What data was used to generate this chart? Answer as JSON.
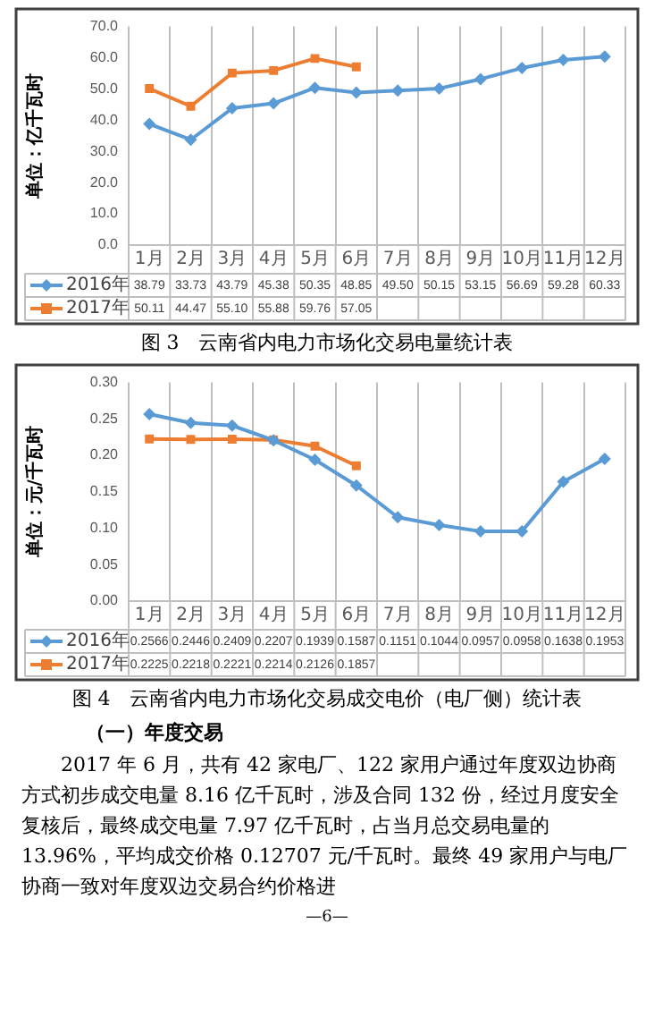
{
  "chart_data": [
    {
      "type": "line",
      "title": "图 3　云南省内电力市场化交易电量统计表",
      "ylabel": "单位：亿千瓦时",
      "categories": [
        "1月",
        "2月",
        "3月",
        "4月",
        "5月",
        "6月",
        "7月",
        "8月",
        "9月",
        "10月",
        "11月",
        "12月"
      ],
      "series": [
        {
          "name": "2016年",
          "color": "#5b9bd5",
          "marker": "diamond",
          "values": [
            38.79,
            33.73,
            43.79,
            45.38,
            50.35,
            48.85,
            49.5,
            50.15,
            53.15,
            56.69,
            59.28,
            60.33
          ],
          "value_labels": [
            "38.79",
            "33.73",
            "43.79",
            "45.38",
            "50.35",
            "48.85",
            "49.50",
            "50.15",
            "53.15",
            "56.69",
            "59.28",
            "60.33"
          ]
        },
        {
          "name": "2017年",
          "color": "#ed7d31",
          "marker": "square",
          "values": [
            50.11,
            44.47,
            55.1,
            55.88,
            59.76,
            57.05,
            null,
            null,
            null,
            null,
            null,
            null
          ],
          "value_labels": [
            "50.11",
            "44.47",
            "55.10",
            "55.88",
            "59.76",
            "57.05",
            null,
            null,
            null,
            null,
            null,
            null
          ]
        }
      ],
      "ylim": [
        0,
        70
      ],
      "yticks": [
        {
          "value": 0,
          "label": "0.0"
        },
        {
          "value": 10,
          "label": "10.0"
        },
        {
          "value": 20,
          "label": "20.0"
        },
        {
          "value": 30,
          "label": "30.0"
        },
        {
          "value": 40,
          "label": "40.0"
        },
        {
          "value": 50,
          "label": "50.0"
        },
        {
          "value": 60,
          "label": "60.0"
        },
        {
          "value": 70,
          "label": "70.0"
        }
      ],
      "grid": "x",
      "legend": "bottom",
      "line_style": "solid"
    },
    {
      "type": "line",
      "title": "图 4　云南省内电力市场化交易成交电价（电厂侧）统计表",
      "ylabel": "单位：元/千瓦时",
      "categories": [
        "1月",
        "2月",
        "3月",
        "4月",
        "5月",
        "6月",
        "7月",
        "8月",
        "9月",
        "10月",
        "11月",
        "12月"
      ],
      "series": [
        {
          "name": "2016年",
          "color": "#5b9bd5",
          "marker": "diamond",
          "values": [
            0.2566,
            0.2446,
            0.2409,
            0.2207,
            0.1939,
            0.1587,
            0.1151,
            0.1044,
            0.0957,
            0.0958,
            0.1638,
            0.1953
          ],
          "value_labels": [
            "0.2566",
            "0.2446",
            "0.2409",
            "0.2207",
            "0.1939",
            "0.1587",
            "0.1151",
            "0.1044",
            "0.0957",
            "0.0958",
            "0.1638",
            "0.1953"
          ]
        },
        {
          "name": "2017年",
          "color": "#ed7d31",
          "marker": "square",
          "values": [
            0.2225,
            0.2218,
            0.2221,
            0.2214,
            0.2126,
            0.1857,
            null,
            null,
            null,
            null,
            null,
            null
          ],
          "value_labels": [
            "0.2225",
            "0.2218",
            "0.2221",
            "0.2214",
            "0.2126",
            "0.1857",
            null,
            null,
            null,
            null,
            null,
            null
          ]
        }
      ],
      "ylim": [
        0,
        0.3
      ],
      "yticks": [
        {
          "value": 0,
          "label": "0.00"
        },
        {
          "value": 0.05,
          "label": "0.05"
        },
        {
          "value": 0.1,
          "label": "0.10"
        },
        {
          "value": 0.15,
          "label": "0.15"
        },
        {
          "value": 0.2,
          "label": "0.20"
        },
        {
          "value": 0.25,
          "label": "0.25"
        },
        {
          "value": 0.3,
          "label": "0.30"
        }
      ],
      "grid": "x",
      "legend": "bottom",
      "line_style": "solid",
      "annotations": [
        "（一）年度交易",
        "2017 年 6 月，共有 42 家电厂、122 家用户通过年度双边协商方式初步成交电量 8.16 亿千瓦时，涉及合同 132 份，经过月度安全复核后，最终成交电量 7.97 亿千瓦时，占当月总交易电量的 13.96%，平均成交价格 0.12707 元/千瓦时。最终 49 家用户与电厂协商一致对年度双边交易合约价格进",
        "—6—"
      ]
    }
  ]
}
